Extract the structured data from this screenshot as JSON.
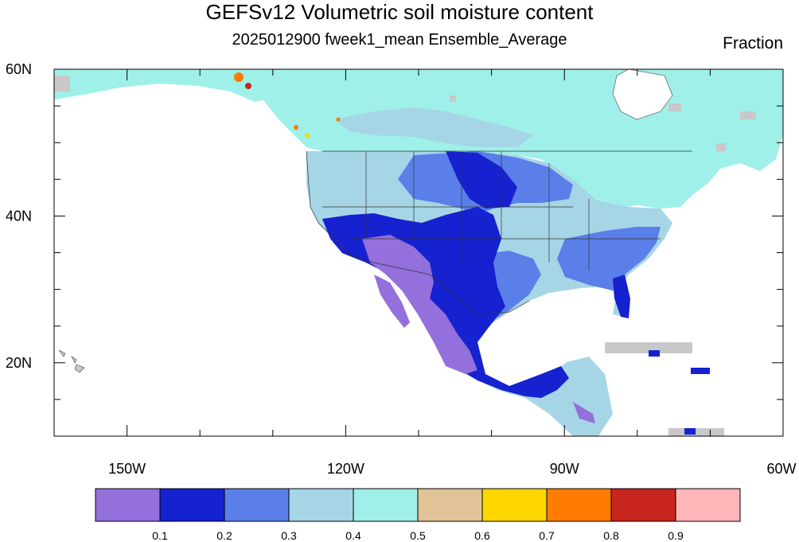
{
  "title": "GEFSv12 Volumetric soil moisture content",
  "subtitle": "2025012900 fweek1_mean Ensemble_Average",
  "units": "Fraction",
  "map": {
    "projection": "cylindrical-equidistant",
    "lon_range": [
      -160,
      -60
    ],
    "lat_range": [
      10,
      60
    ],
    "lon_ticks": [
      {
        "value": -150,
        "label": "150W"
      },
      {
        "value": -120,
        "label": "120W"
      },
      {
        "value": -90,
        "label": "90W"
      },
      {
        "value": -60,
        "label": "60W"
      }
    ],
    "lat_ticks": [
      {
        "value": 60,
        "label": "60N"
      },
      {
        "value": 40,
        "label": "40N"
      },
      {
        "value": 20,
        "label": "20N"
      }
    ]
  },
  "colorbar": {
    "colors": [
      "#9370db",
      "#1621d0",
      "#5b7fe8",
      "#a6d5e6",
      "#9ff0e8",
      "#e0c497",
      "#fed600",
      "#fe7a00",
      "#c9251f",
      "#feb6b8"
    ],
    "levels": [
      "0.1",
      "0.2",
      "0.3",
      "0.4",
      "0.5",
      "0.6",
      "0.7",
      "0.8",
      "0.9"
    ]
  },
  "colors": {
    "nodata": "#c8c8c8",
    "ocean": "#ffffff"
  }
}
